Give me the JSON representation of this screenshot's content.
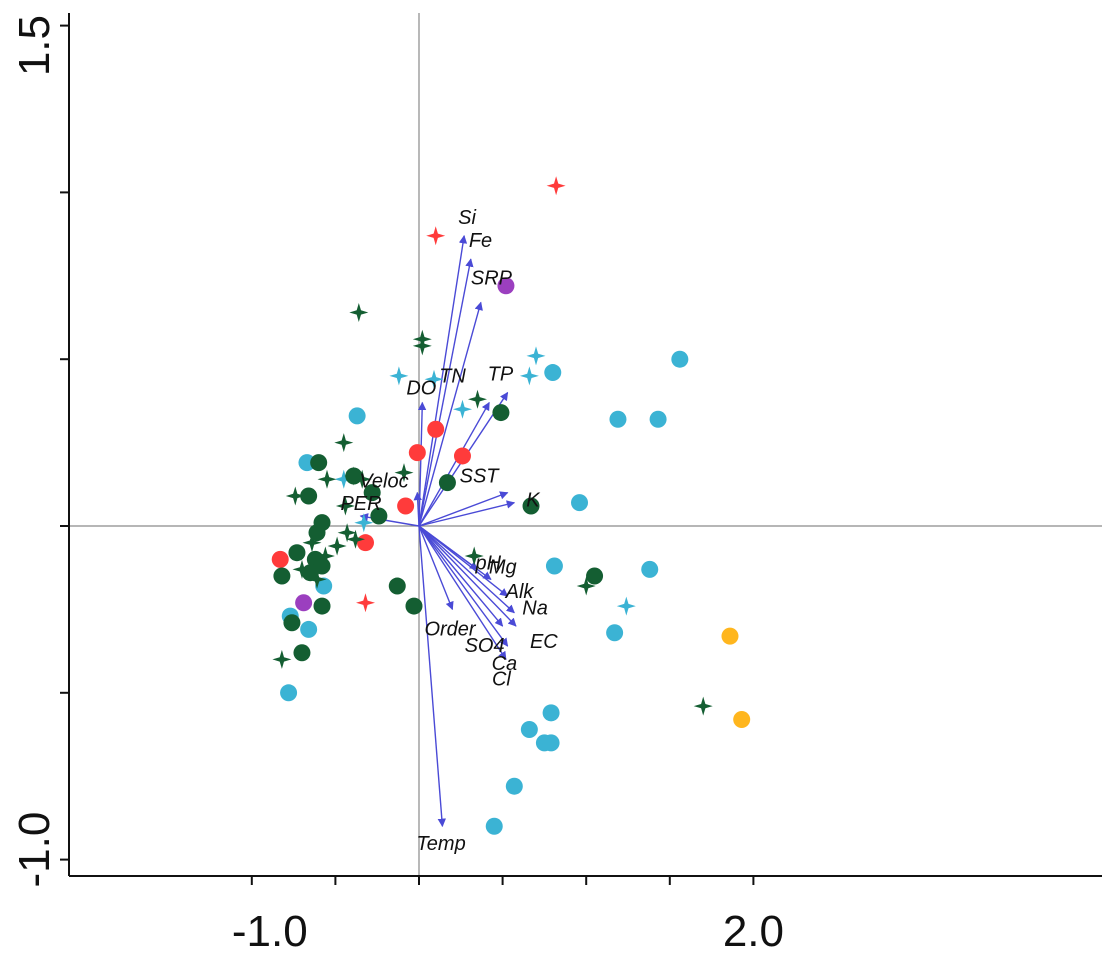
{
  "chart_data": {
    "type": "scatter",
    "subtype": "ordination biplot",
    "xlim": [
      -1.0,
      2.0
    ],
    "ylim": [
      -1.0,
      1.5
    ],
    "x_tick_labels": [
      "-1.0",
      "2.0"
    ],
    "y_tick_labels": [
      "1.5",
      "-1.0"
    ],
    "grid": false,
    "zero_lines": true,
    "colors": {
      "red": "#ff3b3b",
      "purple": "#9b3fbf",
      "dark_green": "#145e32",
      "light_blue": "#3bb3d4",
      "orange": "#ffb61e",
      "arrow": "#4a4ad6"
    },
    "vectors": [
      {
        "label": "Si",
        "x": 0.27,
        "y": 0.87
      },
      {
        "label": "Fe",
        "x": 0.31,
        "y": 0.8
      },
      {
        "label": "SRP",
        "x": 0.37,
        "y": 0.67
      },
      {
        "label": "TN",
        "x": 0.42,
        "y": 0.37
      },
      {
        "label": "TP",
        "x": 0.53,
        "y": 0.4
      },
      {
        "label": "DO",
        "x": 0.02,
        "y": 0.37
      },
      {
        "label": "SST",
        "x": 0.53,
        "y": 0.1
      },
      {
        "label": "K",
        "x": 0.57,
        "y": 0.07
      },
      {
        "label": "Veloc",
        "x": -0.01,
        "y": 0.1
      },
      {
        "label": "PER",
        "x": -0.35,
        "y": 0.03
      },
      {
        "label": "pH",
        "x": 0.35,
        "y": -0.13
      },
      {
        "label": "Mg",
        "x": 0.43,
        "y": -0.16
      },
      {
        "label": "Alk",
        "x": 0.53,
        "y": -0.21
      },
      {
        "label": "Na",
        "x": 0.57,
        "y": -0.26
      },
      {
        "label": "EC",
        "x": 0.58,
        "y": -0.3
      },
      {
        "label": "SO4",
        "x": 0.5,
        "y": -0.3
      },
      {
        "label": "Ca",
        "x": 0.53,
        "y": -0.36
      },
      {
        "label": "Cl",
        "x": 0.52,
        "y": -0.4
      },
      {
        "label": "Order",
        "x": 0.2,
        "y": -0.25
      },
      {
        "label": "Temp",
        "x": 0.14,
        "y": -0.9
      }
    ],
    "points": [
      {
        "shape": "star",
        "color": "red",
        "x": 0.82,
        "y": 1.02
      },
      {
        "shape": "star",
        "color": "red",
        "x": 0.1,
        "y": 0.87
      },
      {
        "shape": "star",
        "color": "red",
        "x": -0.32,
        "y": -0.23
      },
      {
        "shape": "circle",
        "color": "purple",
        "x": 0.52,
        "y": 0.72
      },
      {
        "shape": "circle",
        "color": "purple",
        "x": -0.69,
        "y": -0.23
      },
      {
        "shape": "circle",
        "color": "red",
        "x": 0.1,
        "y": 0.29
      },
      {
        "shape": "circle",
        "color": "red",
        "x": -0.01,
        "y": 0.22
      },
      {
        "shape": "circle",
        "color": "red",
        "x": 0.26,
        "y": 0.21
      },
      {
        "shape": "circle",
        "color": "red",
        "x": -0.08,
        "y": 0.06
      },
      {
        "shape": "circle",
        "color": "red",
        "x": -0.32,
        "y": -0.05
      },
      {
        "shape": "circle",
        "color": "red",
        "x": -0.83,
        "y": -0.1
      },
      {
        "shape": "circle",
        "color": "orange",
        "x": 1.86,
        "y": -0.33
      },
      {
        "shape": "circle",
        "color": "orange",
        "x": 1.93,
        "y": -0.58
      },
      {
        "shape": "star",
        "color": "light_blue",
        "x": 0.7,
        "y": 0.51
      },
      {
        "shape": "star",
        "color": "light_blue",
        "x": 0.66,
        "y": 0.45
      },
      {
        "shape": "star",
        "color": "light_blue",
        "x": -0.12,
        "y": 0.45
      },
      {
        "shape": "star",
        "color": "light_blue",
        "x": 0.09,
        "y": 0.44
      },
      {
        "shape": "star",
        "color": "light_blue",
        "x": 0.26,
        "y": 0.35
      },
      {
        "shape": "star",
        "color": "light_blue",
        "x": -0.45,
        "y": 0.14
      },
      {
        "shape": "star",
        "color": "light_blue",
        "x": -0.33,
        "y": 0.01
      },
      {
        "shape": "star",
        "color": "light_blue",
        "x": 1.24,
        "y": -0.24
      },
      {
        "shape": "circle",
        "color": "light_blue",
        "x": 1.56,
        "y": 0.5
      },
      {
        "shape": "circle",
        "color": "light_blue",
        "x": 0.8,
        "y": 0.46
      },
      {
        "shape": "circle",
        "color": "light_blue",
        "x": 1.19,
        "y": 0.32
      },
      {
        "shape": "circle",
        "color": "light_blue",
        "x": 1.43,
        "y": 0.32
      },
      {
        "shape": "circle",
        "color": "light_blue",
        "x": 0.96,
        "y": 0.07
      },
      {
        "shape": "circle",
        "color": "light_blue",
        "x": -0.37,
        "y": 0.33
      },
      {
        "shape": "circle",
        "color": "light_blue",
        "x": -0.67,
        "y": 0.19
      },
      {
        "shape": "circle",
        "color": "light_blue",
        "x": 0.81,
        "y": -0.12
      },
      {
        "shape": "circle",
        "color": "light_blue",
        "x": 1.38,
        "y": -0.13
      },
      {
        "shape": "circle",
        "color": "light_blue",
        "x": 1.17,
        "y": -0.32
      },
      {
        "shape": "circle",
        "color": "light_blue",
        "x": -0.57,
        "y": -0.18
      },
      {
        "shape": "circle",
        "color": "light_blue",
        "x": -0.77,
        "y": -0.27
      },
      {
        "shape": "circle",
        "color": "light_blue",
        "x": -0.66,
        "y": -0.31
      },
      {
        "shape": "circle",
        "color": "light_blue",
        "x": -0.78,
        "y": -0.5
      },
      {
        "shape": "circle",
        "color": "light_blue",
        "x": 0.79,
        "y": -0.56
      },
      {
        "shape": "circle",
        "color": "light_blue",
        "x": 0.66,
        "y": -0.61
      },
      {
        "shape": "circle",
        "color": "light_blue",
        "x": 0.75,
        "y": -0.65
      },
      {
        "shape": "circle",
        "color": "light_blue",
        "x": 0.79,
        "y": -0.65
      },
      {
        "shape": "circle",
        "color": "light_blue",
        "x": 0.57,
        "y": -0.78
      },
      {
        "shape": "circle",
        "color": "light_blue",
        "x": 0.45,
        "y": -0.9
      },
      {
        "shape": "star",
        "color": "dark_green",
        "x": -0.36,
        "y": 0.64
      },
      {
        "shape": "star",
        "color": "dark_green",
        "x": 0.02,
        "y": 0.56
      },
      {
        "shape": "star",
        "color": "dark_green",
        "x": 0.02,
        "y": 0.54
      },
      {
        "shape": "star",
        "color": "dark_green",
        "x": 0.35,
        "y": 0.38
      },
      {
        "shape": "star",
        "color": "dark_green",
        "x": -0.45,
        "y": 0.25
      },
      {
        "shape": "star",
        "color": "dark_green",
        "x": -0.55,
        "y": 0.14
      },
      {
        "shape": "star",
        "color": "dark_green",
        "x": -0.74,
        "y": 0.09
      },
      {
        "shape": "star",
        "color": "dark_green",
        "x": -0.44,
        "y": 0.06
      },
      {
        "shape": "star",
        "color": "dark_green",
        "x": -0.39,
        "y": 0.15
      },
      {
        "shape": "star",
        "color": "dark_green",
        "x": -0.34,
        "y": 0.14
      },
      {
        "shape": "star",
        "color": "dark_green",
        "x": -0.09,
        "y": 0.16
      },
      {
        "shape": "star",
        "color": "dark_green",
        "x": -0.38,
        "y": -0.04
      },
      {
        "shape": "star",
        "color": "dark_green",
        "x": -0.49,
        "y": -0.06
      },
      {
        "shape": "star",
        "color": "dark_green",
        "x": -0.43,
        "y": -0.02
      },
      {
        "shape": "star",
        "color": "dark_green",
        "x": -0.56,
        "y": -0.09
      },
      {
        "shape": "star",
        "color": "dark_green",
        "x": -0.64,
        "y": -0.05
      },
      {
        "shape": "star",
        "color": "dark_green",
        "x": -0.7,
        "y": -0.13
      },
      {
        "shape": "star",
        "color": "dark_green",
        "x": -0.61,
        "y": -0.16
      },
      {
        "shape": "star",
        "color": "dark_green",
        "x": -0.82,
        "y": -0.4
      },
      {
        "shape": "star",
        "color": "dark_green",
        "x": 0.33,
        "y": -0.09
      },
      {
        "shape": "star",
        "color": "dark_green",
        "x": 1.0,
        "y": -0.18
      },
      {
        "shape": "star",
        "color": "dark_green",
        "x": 1.7,
        "y": -0.54
      },
      {
        "shape": "circle",
        "color": "dark_green",
        "x": 0.49,
        "y": 0.34
      },
      {
        "shape": "circle",
        "color": "dark_green",
        "x": 0.17,
        "y": 0.13
      },
      {
        "shape": "circle",
        "color": "dark_green",
        "x": 0.67,
        "y": 0.06
      },
      {
        "shape": "circle",
        "color": "dark_green",
        "x": -0.6,
        "y": 0.19
      },
      {
        "shape": "circle",
        "color": "dark_green",
        "x": -0.66,
        "y": 0.09
      },
      {
        "shape": "circle",
        "color": "dark_green",
        "x": -0.39,
        "y": 0.15
      },
      {
        "shape": "circle",
        "color": "dark_green",
        "x": -0.28,
        "y": 0.1
      },
      {
        "shape": "circle",
        "color": "dark_green",
        "x": -0.24,
        "y": 0.03
      },
      {
        "shape": "circle",
        "color": "dark_green",
        "x": -0.58,
        "y": 0.01
      },
      {
        "shape": "circle",
        "color": "dark_green",
        "x": -0.61,
        "y": -0.02
      },
      {
        "shape": "circle",
        "color": "dark_green",
        "x": -0.73,
        "y": -0.08
      },
      {
        "shape": "circle",
        "color": "dark_green",
        "x": -0.62,
        "y": -0.1
      },
      {
        "shape": "circle",
        "color": "dark_green",
        "x": -0.58,
        "y": -0.12
      },
      {
        "shape": "circle",
        "color": "dark_green",
        "x": -0.65,
        "y": -0.14
      },
      {
        "shape": "circle",
        "color": "dark_green",
        "x": -0.82,
        "y": -0.15
      },
      {
        "shape": "circle",
        "color": "dark_green",
        "x": -0.58,
        "y": -0.24
      },
      {
        "shape": "circle",
        "color": "dark_green",
        "x": -0.13,
        "y": -0.18
      },
      {
        "shape": "circle",
        "color": "dark_green",
        "x": -0.03,
        "y": -0.24
      },
      {
        "shape": "circle",
        "color": "dark_green",
        "x": 1.05,
        "y": -0.15
      },
      {
        "shape": "circle",
        "color": "dark_green",
        "x": -0.76,
        "y": -0.29
      },
      {
        "shape": "circle",
        "color": "dark_green",
        "x": -0.7,
        "y": -0.38
      }
    ]
  }
}
